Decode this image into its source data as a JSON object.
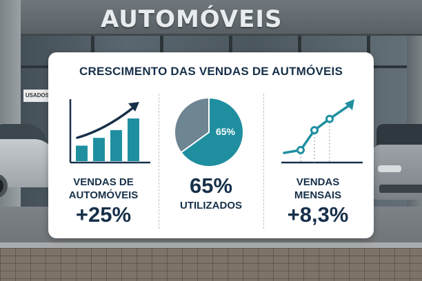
{
  "storefront": {
    "sign": "AUTOMÓVEIS",
    "window_sign": "USADOS"
  },
  "infographic": {
    "title": "CRESCIMENTO DAS VENDAS DE AUTMÓVEIS",
    "colors": {
      "accent": "#1f8fa0",
      "navy": "#17304a",
      "pie_gray": "#6e8592"
    },
    "panels": [
      {
        "label_line1": "VENDAS DE",
        "label_line2": "AUTOMÓVEIS",
        "value": "+25%",
        "icon": "bar-chart-rising-arrow-icon"
      },
      {
        "pie_label": "65%",
        "value": "65%",
        "label": "UTILIZADOS",
        "icon": "pie-chart-icon",
        "pie_fraction": 0.65
      },
      {
        "label_line1": "VENDAS",
        "label_line2": "MENSAIS",
        "value": "+8,3%",
        "icon": "line-chart-rising-arrow-icon"
      }
    ]
  },
  "chart_data": [
    {
      "type": "bar",
      "values": [
        2,
        3,
        4,
        5.5
      ],
      "trend_arrow": "up"
    },
    {
      "type": "pie",
      "values": [
        65,
        35
      ]
    },
    {
      "type": "line",
      "values": [
        1,
        1.2,
        2.6,
        3.4,
        4.4
      ],
      "trend_arrow": "up"
    }
  ]
}
